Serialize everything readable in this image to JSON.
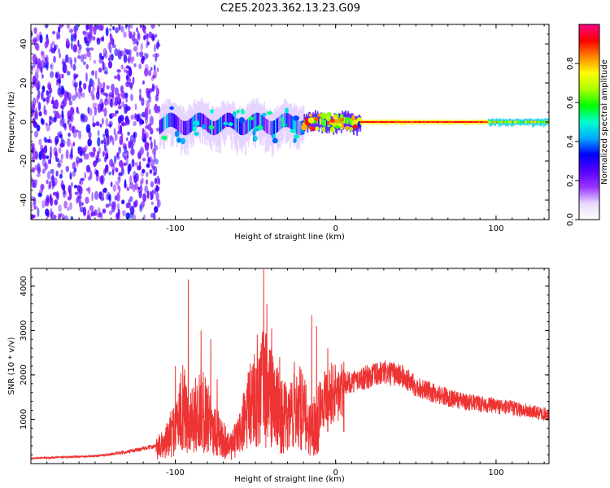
{
  "figure": {
    "title": "C2E5.2023.362.13.23.G09"
  },
  "chart_data": [
    {
      "type": "heatmap",
      "xlabel": "Height of straight line (km)",
      "ylabel": "Frequency (Hz)",
      "xlim": [
        -190,
        133
      ],
      "ylim": [
        -50,
        50
      ],
      "x_ticks": [
        -100,
        0,
        100
      ],
      "y_ticks": [
        -40,
        -20,
        0,
        20,
        40
      ],
      "grid": false,
      "colorbar": {
        "label": "Normalized spectral amplitude",
        "range": [
          0.0,
          1.0
        ],
        "ticks": [
          0.0,
          0.2,
          0.4,
          0.6,
          0.8
        ],
        "colors": [
          "#ffffff",
          "#e8d8ff",
          "#9933ff",
          "#5500ff",
          "#0000ff",
          "#00aaff",
          "#00ffcc",
          "#00ff00",
          "#aaff00",
          "#ffff00",
          "#ff8800",
          "#ff0000",
          "#ff0088"
        ]
      },
      "regions": [
        {
          "x": [
            -190,
            -110
          ],
          "freq_band": [
            -50,
            50
          ],
          "amplitude": [
            0.02,
            0.12
          ],
          "description_key": "noise"
        },
        {
          "x": [
            -110,
            -20
          ],
          "freq_band": [
            -10,
            8
          ],
          "amplitude": [
            0.1,
            0.5
          ]
        },
        {
          "x": [
            -20,
            15
          ],
          "freq_band": [
            -4,
            4
          ],
          "amplitude": [
            0.3,
            0.85
          ]
        },
        {
          "x": [
            15,
            95
          ],
          "freq_band": [
            -1,
            1
          ],
          "amplitude": [
            0.85,
            0.95
          ]
        },
        {
          "x": [
            95,
            133
          ],
          "freq_band": [
            -1.5,
            1.5
          ],
          "amplitude": [
            0.5,
            0.85
          ]
        }
      ]
    },
    {
      "type": "line",
      "xlabel": "Height of straight line (km)",
      "ylabel": "SNR (10 * v/v)",
      "xlim": [
        -190,
        133
      ],
      "ylim": [
        0,
        4400
      ],
      "x_ticks": [
        -100,
        0,
        100
      ],
      "y_ticks": [
        1000,
        2000,
        3000,
        4000
      ],
      "grid": false,
      "color": "#ee3333",
      "envelope": {
        "x": [
          -190,
          -150,
          -130,
          -112,
          -105,
          -100,
          -95,
          -90,
          -85,
          -80,
          -75,
          -70,
          -65,
          -60,
          -55,
          -50,
          -45,
          -40,
          -35,
          -30,
          -25,
          -20,
          -15,
          -10,
          -5,
          0,
          10,
          20,
          30,
          40,
          50,
          60,
          70,
          80,
          90,
          100,
          110,
          120,
          133
        ],
        "y": [
          120,
          170,
          260,
          400,
          700,
          1100,
          1700,
          1300,
          1600,
          1500,
          1000,
          700,
          500,
          900,
          1500,
          2100,
          2400,
          2000,
          1500,
          1300,
          1800,
          1500,
          1000,
          1500,
          1800,
          1750,
          1850,
          1950,
          2050,
          2000,
          1750,
          1600,
          1500,
          1400,
          1350,
          1300,
          1250,
          1180,
          1100
        ],
        "spikes": [
          {
            "x": -100,
            "y": 2200
          },
          {
            "x": -92,
            "y": 4150
          },
          {
            "x": -84,
            "y": 3000
          },
          {
            "x": -78,
            "y": 2800
          },
          {
            "x": -74,
            "y": 1900
          },
          {
            "x": -45,
            "y": 4380
          },
          {
            "x": -43,
            "y": 3600
          },
          {
            "x": -40,
            "y": 3050
          },
          {
            "x": -35,
            "y": 2400
          },
          {
            "x": -15,
            "y": 3350
          },
          {
            "x": -12,
            "y": 3100
          },
          {
            "x": -5,
            "y": 2600
          },
          {
            "x": 5,
            "y": 2300
          }
        ]
      }
    }
  ]
}
